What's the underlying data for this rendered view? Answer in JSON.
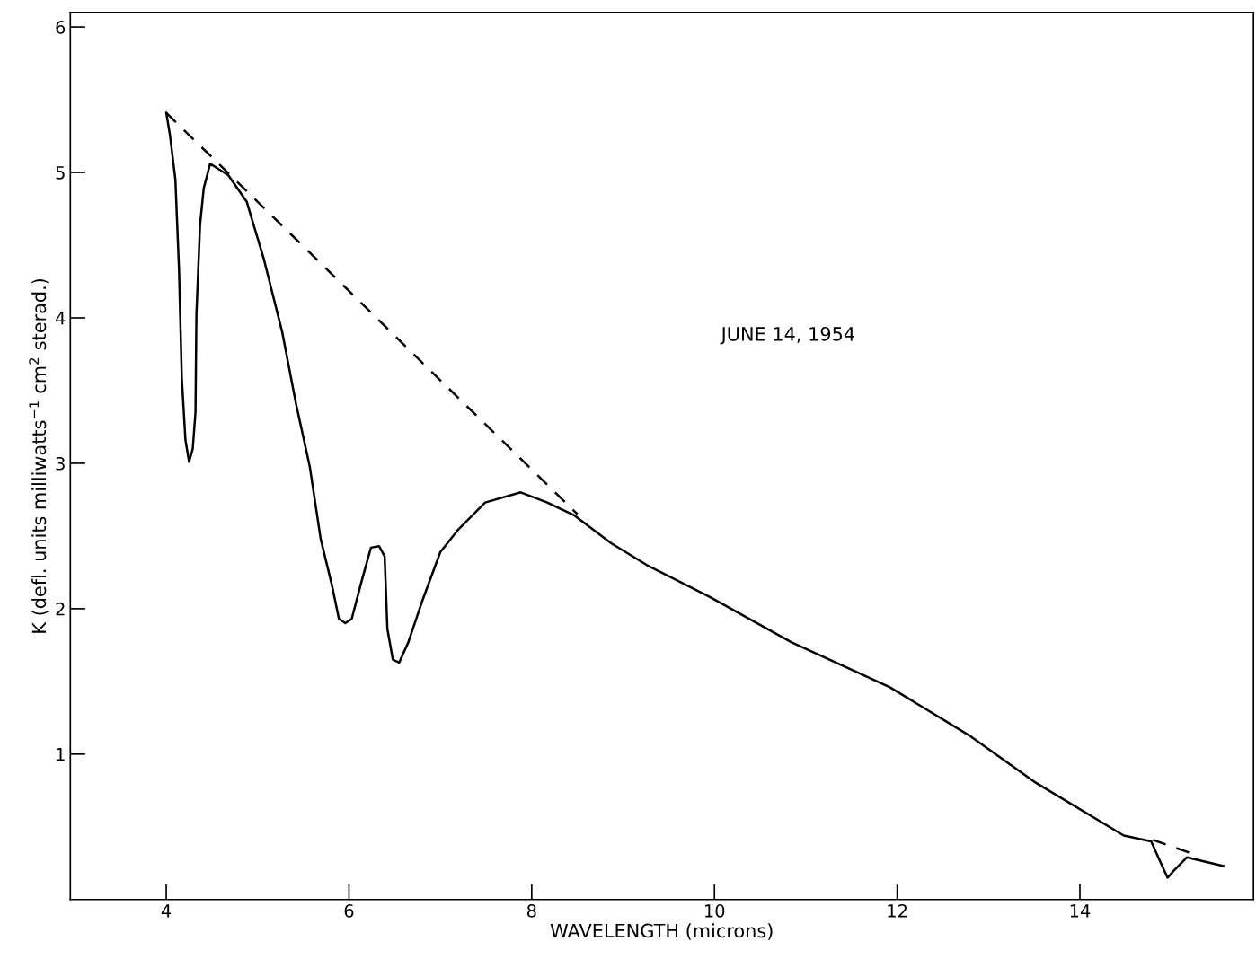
{
  "chart_data": {
    "type": "line",
    "xlabel": "WAVELENGTH (microns)",
    "ylabel": "K (defl. units milliwatts$^{−1}$ cm$^{2}$ sterad.)",
    "annotations": [
      "JUNE 14, 1954"
    ],
    "xlim": [
      2.95,
      15.9
    ],
    "ylim": [
      0,
      6.1
    ],
    "xticks": [
      4,
      6,
      8,
      10,
      12,
      14
    ],
    "yticks": [
      1,
      2,
      3,
      4,
      5,
      6
    ],
    "grid": false,
    "marker": "none",
    "series": [
      {
        "color": "#000000",
        "line_style": "solid",
        "x": [
          4.0,
          4.04,
          4.1,
          4.14,
          4.17,
          4.21,
          4.25,
          4.29,
          4.32,
          4.33,
          4.37,
          4.41,
          4.48,
          4.68,
          4.88,
          5.07,
          5.27,
          5.42,
          5.57,
          5.69,
          5.81,
          5.89,
          5.96,
          6.03,
          6.13,
          6.24,
          6.33,
          6.39,
          6.42,
          6.48,
          6.55,
          6.65,
          6.8,
          7.0,
          7.19,
          7.49,
          7.88,
          8.17,
          8.47,
          8.87,
          9.26,
          9.95,
          10.84,
          11.92,
          12.81,
          13.5,
          14.48,
          14.78,
          14.88,
          14.96,
          15.03,
          15.17,
          15.57
        ],
        "values": [
          5.41,
          5.26,
          4.95,
          4.33,
          3.59,
          3.16,
          3.01,
          3.1,
          3.35,
          4.02,
          4.64,
          4.89,
          5.06,
          4.98,
          4.8,
          4.4,
          3.9,
          3.41,
          2.98,
          2.48,
          2.17,
          1.93,
          1.9,
          1.93,
          2.17,
          2.42,
          2.43,
          2.36,
          1.86,
          1.65,
          1.63,
          1.77,
          2.05,
          2.39,
          2.54,
          2.73,
          2.8,
          2.73,
          2.64,
          2.45,
          2.3,
          2.08,
          1.77,
          1.46,
          1.12,
          0.81,
          0.44,
          0.4,
          0.26,
          0.15,
          0.2,
          0.29,
          0.23
        ]
      },
      {
        "color": "#000000",
        "line_style": "dashed",
        "x": [
          4.0,
          4.9,
          8.5
        ],
        "values": [
          5.41,
          4.86,
          2.65
        ]
      },
      {
        "color": "#000000",
        "line_style": "dashed",
        "x": [
          14.8,
          15.3
        ],
        "values": [
          0.41,
          0.3
        ]
      }
    ]
  }
}
